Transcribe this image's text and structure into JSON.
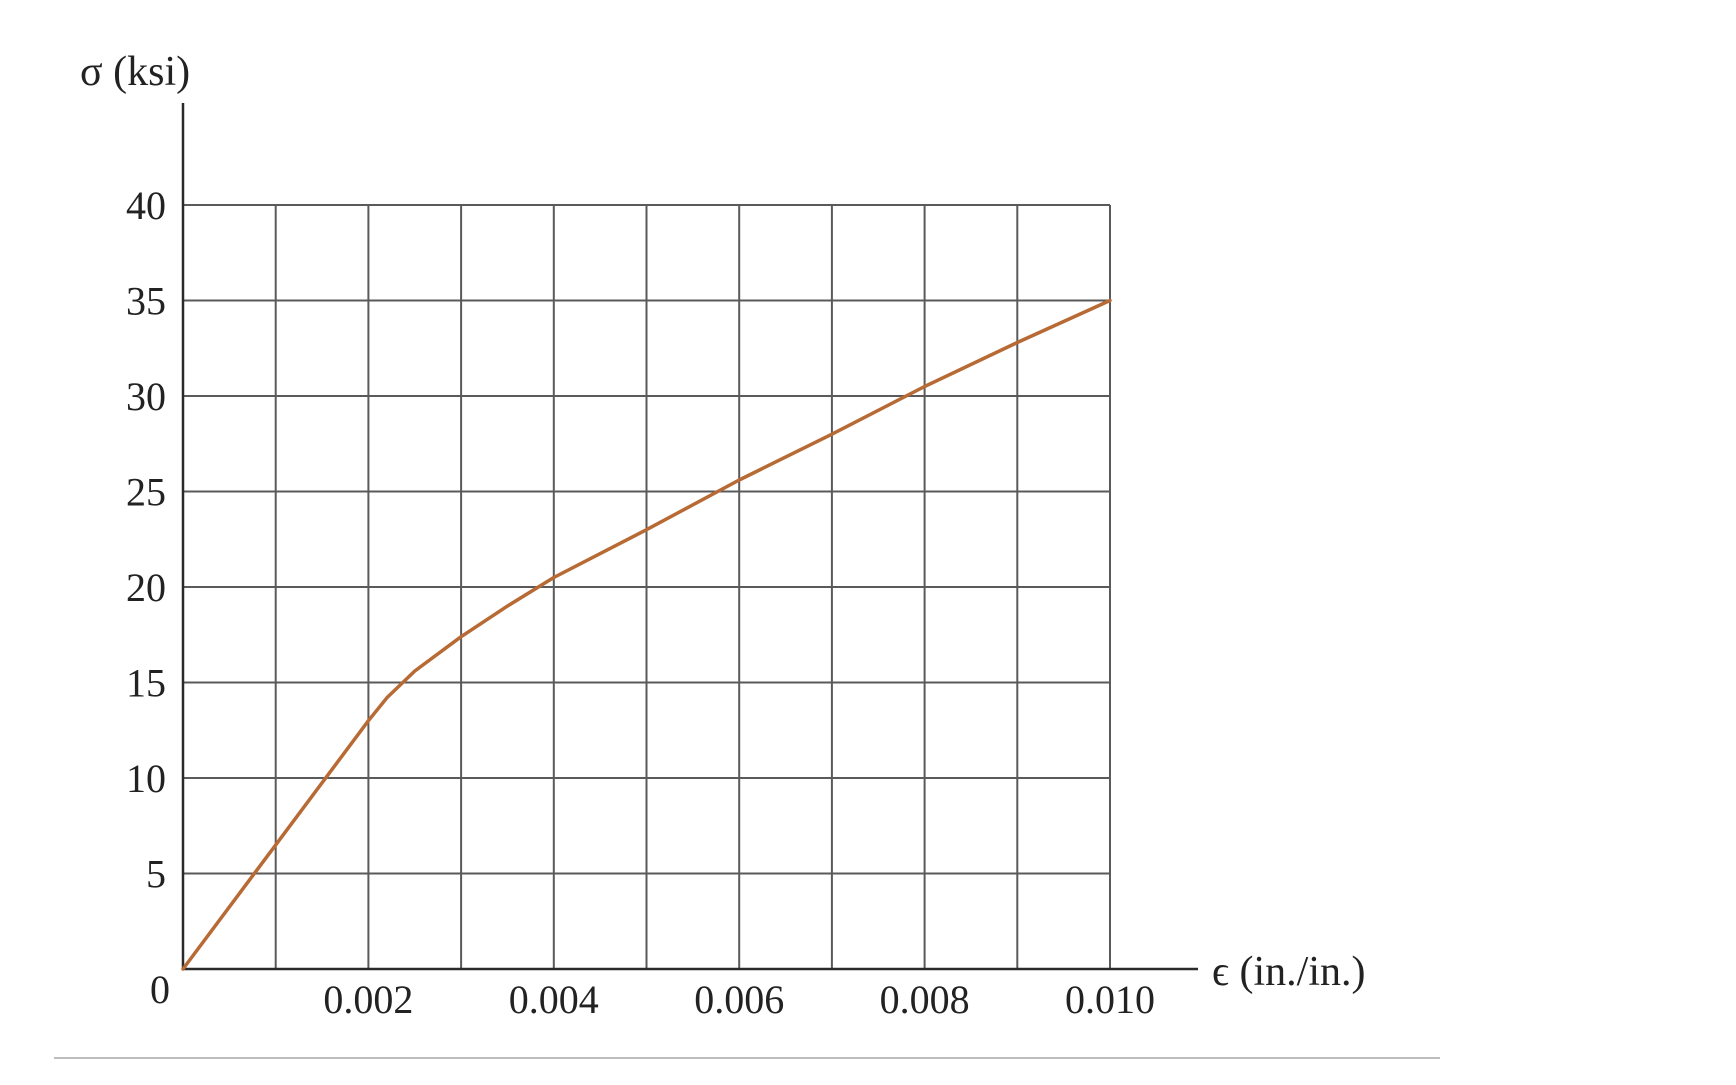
{
  "chart_data": {
    "type": "line",
    "title": "",
    "xlabel": "ϵ (in./in.)",
    "ylabel": "σ (ksi)",
    "xlim": [
      0,
      0.01
    ],
    "ylim": [
      0,
      40
    ],
    "grid": true,
    "x_ticks": [
      0.002,
      0.004,
      0.006,
      0.008,
      0.01
    ],
    "x_tick_labels": [
      "0.002",
      "0.004",
      "0.006",
      "0.008",
      "0.010"
    ],
    "x_grid_step": 0.001,
    "y_ticks": [
      0,
      5,
      10,
      15,
      20,
      25,
      30,
      35,
      40
    ],
    "y_tick_labels": [
      "0",
      "5",
      "10",
      "15",
      "20",
      "25",
      "30",
      "35",
      "40"
    ],
    "origin_label": "0",
    "series": [
      {
        "color": "#b86a35",
        "x": [
          0,
          0.001,
          0.002,
          0.0022,
          0.0025,
          0.003,
          0.0035,
          0.004,
          0.005,
          0.006,
          0.007,
          0.008,
          0.009,
          0.01
        ],
        "y": [
          0,
          6.5,
          13,
          14.2,
          15.6,
          17.4,
          19,
          20.5,
          23,
          25.6,
          28,
          30.5,
          32.8,
          35
        ]
      }
    ]
  }
}
